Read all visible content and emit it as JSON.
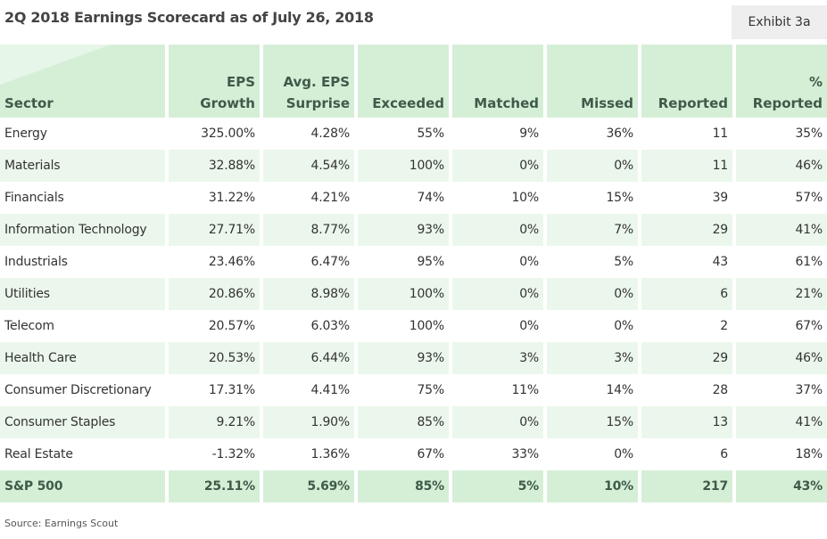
{
  "header": {
    "title": "2Q 2018 Earnings Scorecard as of July 26, 2018",
    "exhibit": "Exhibit 3a"
  },
  "table": {
    "columns": [
      [
        "Sector"
      ],
      [
        "EPS",
        "Growth"
      ],
      [
        "Avg. EPS",
        "Surprise"
      ],
      [
        "Exceeded"
      ],
      [
        "Matched"
      ],
      [
        "Missed"
      ],
      [
        "Reported"
      ],
      [
        "%",
        "Reported"
      ]
    ],
    "rows": [
      [
        "Energy",
        "325.00%",
        "4.28%",
        "55%",
        "9%",
        "36%",
        "11",
        "35%"
      ],
      [
        "Materials",
        "32.88%",
        "4.54%",
        "100%",
        "0%",
        "0%",
        "11",
        "46%"
      ],
      [
        "Financials",
        "31.22%",
        "4.21%",
        "74%",
        "10%",
        "15%",
        "39",
        "57%"
      ],
      [
        "Information Technology",
        "27.71%",
        "8.77%",
        "93%",
        "0%",
        "7%",
        "29",
        "41%"
      ],
      [
        "Industrials",
        "23.46%",
        "6.47%",
        "95%",
        "0%",
        "5%",
        "43",
        "61%"
      ],
      [
        "Utilities",
        "20.86%",
        "8.98%",
        "100%",
        "0%",
        "0%",
        "6",
        "21%"
      ],
      [
        "Telecom",
        "20.57%",
        "6.03%",
        "100%",
        "0%",
        "0%",
        "2",
        "67%"
      ],
      [
        "Health Care",
        "20.53%",
        "6.44%",
        "93%",
        "3%",
        "3%",
        "29",
        "46%"
      ],
      [
        "Consumer Discretionary",
        "17.31%",
        "4.41%",
        "75%",
        "11%",
        "14%",
        "28",
        "37%"
      ],
      [
        "Consumer Staples",
        "9.21%",
        "1.90%",
        "85%",
        "0%",
        "15%",
        "13",
        "41%"
      ],
      [
        "Real Estate",
        "-1.32%",
        "1.36%",
        "67%",
        "33%",
        "0%",
        "6",
        "18%"
      ]
    ],
    "total": [
      "S&P 500",
      "25.11%",
      "5.69%",
      "85%",
      "5%",
      "10%",
      "217",
      "43%"
    ]
  },
  "footer": {
    "source": "Source: Earnings Scout"
  }
}
